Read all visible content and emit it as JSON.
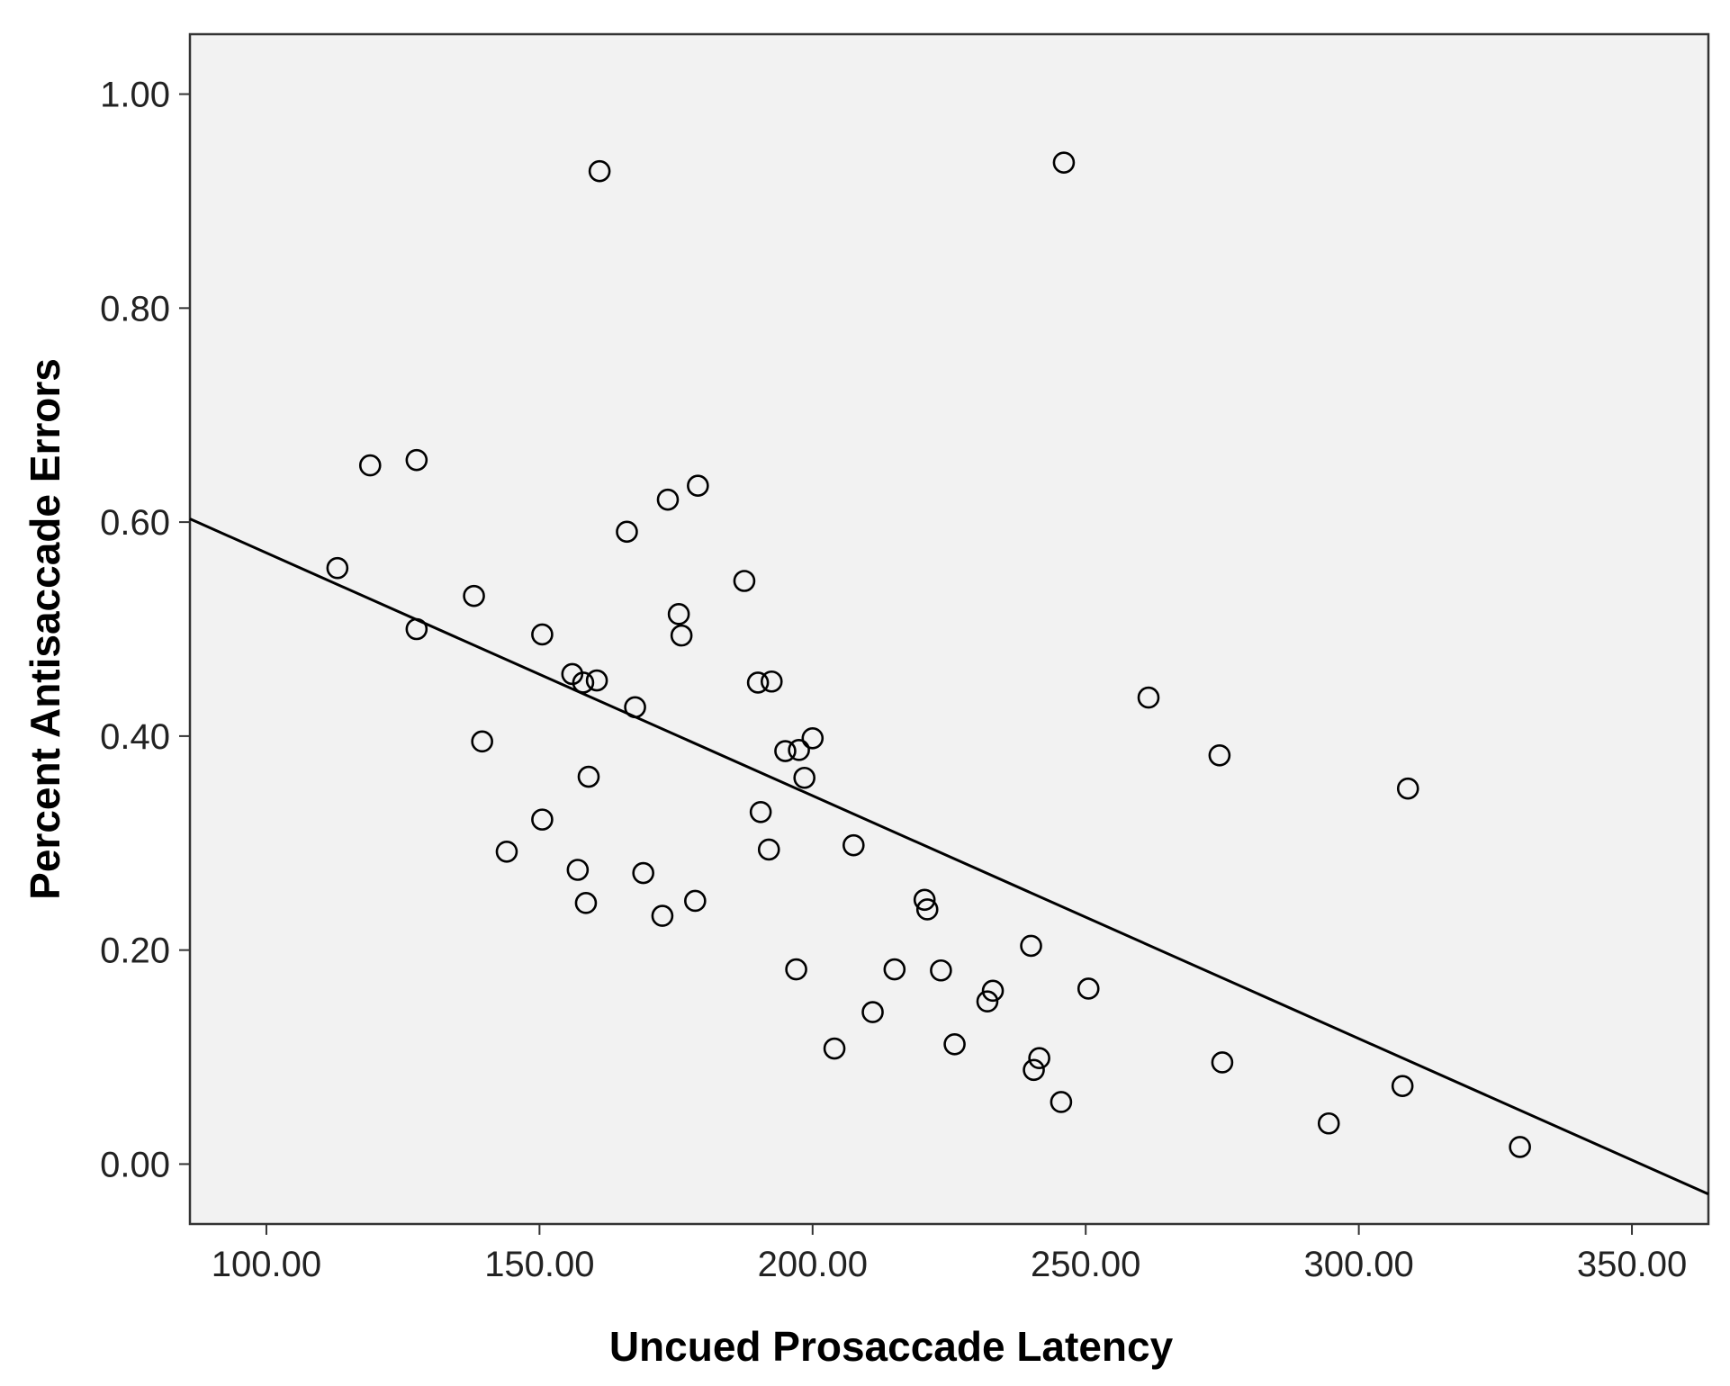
{
  "chart_data": {
    "type": "scatter",
    "xlabel": "Uncued Prosaccade Latency",
    "ylabel": "Percent Antisaccade Errors",
    "xlim": [
      86,
      364
    ],
    "ylim": [
      -0.056,
      1.056
    ],
    "xticks": [
      100,
      150,
      200,
      250,
      300,
      350
    ],
    "yticks": [
      0.0,
      0.2,
      0.4,
      0.6,
      0.8,
      1.0
    ],
    "xtick_labels": [
      "100.00",
      "150.00",
      "200.00",
      "250.00",
      "300.00",
      "350.00"
    ],
    "ytick_labels": [
      "0.00",
      "0.20",
      "0.40",
      "0.60",
      "0.80",
      "1.00"
    ],
    "grid": false,
    "legend": "none",
    "colors": {
      "plot_background": "#f2f2f2",
      "marker_edge": "#000000",
      "fit_line": "#000000",
      "frame": "#333333"
    },
    "points": [
      {
        "x": 113,
        "y": 0.557
      },
      {
        "x": 119,
        "y": 0.653
      },
      {
        "x": 127.5,
        "y": 0.658
      },
      {
        "x": 127.5,
        "y": 0.5
      },
      {
        "x": 138,
        "y": 0.531
      },
      {
        "x": 139.5,
        "y": 0.395
      },
      {
        "x": 144,
        "y": 0.292
      },
      {
        "x": 150.5,
        "y": 0.322
      },
      {
        "x": 150.5,
        "y": 0.495
      },
      {
        "x": 156,
        "y": 0.458
      },
      {
        "x": 157,
        "y": 0.275
      },
      {
        "x": 158,
        "y": 0.45
      },
      {
        "x": 158.5,
        "y": 0.244
      },
      {
        "x": 159,
        "y": 0.362
      },
      {
        "x": 160.5,
        "y": 0.452
      },
      {
        "x": 161,
        "y": 0.928
      },
      {
        "x": 166,
        "y": 0.591
      },
      {
        "x": 167.5,
        "y": 0.427
      },
      {
        "x": 169,
        "y": 0.272
      },
      {
        "x": 172.5,
        "y": 0.232
      },
      {
        "x": 173.5,
        "y": 0.621
      },
      {
        "x": 175.5,
        "y": 0.514
      },
      {
        "x": 176,
        "y": 0.494
      },
      {
        "x": 178.5,
        "y": 0.246
      },
      {
        "x": 179,
        "y": 0.634
      },
      {
        "x": 187.5,
        "y": 0.545
      },
      {
        "x": 190,
        "y": 0.45
      },
      {
        "x": 190.5,
        "y": 0.329
      },
      {
        "x": 192,
        "y": 0.294
      },
      {
        "x": 192.5,
        "y": 0.451
      },
      {
        "x": 195,
        "y": 0.386
      },
      {
        "x": 197,
        "y": 0.182
      },
      {
        "x": 197.5,
        "y": 0.387
      },
      {
        "x": 198.5,
        "y": 0.361
      },
      {
        "x": 200,
        "y": 0.398
      },
      {
        "x": 204,
        "y": 0.108
      },
      {
        "x": 207.5,
        "y": 0.298
      },
      {
        "x": 211,
        "y": 0.142
      },
      {
        "x": 215,
        "y": 0.182
      },
      {
        "x": 220.5,
        "y": 0.247
      },
      {
        "x": 221,
        "y": 0.238
      },
      {
        "x": 223.5,
        "y": 0.181
      },
      {
        "x": 226,
        "y": 0.112
      },
      {
        "x": 232,
        "y": 0.152
      },
      {
        "x": 233,
        "y": 0.162
      },
      {
        "x": 240,
        "y": 0.204
      },
      {
        "x": 240.5,
        "y": 0.088
      },
      {
        "x": 241.5,
        "y": 0.099
      },
      {
        "x": 245.5,
        "y": 0.058
      },
      {
        "x": 246,
        "y": 0.936
      },
      {
        "x": 250.5,
        "y": 0.164
      },
      {
        "x": 261.5,
        "y": 0.436
      },
      {
        "x": 274.5,
        "y": 0.382
      },
      {
        "x": 275,
        "y": 0.095
      },
      {
        "x": 294.5,
        "y": 0.038
      },
      {
        "x": 308,
        "y": 0.073
      },
      {
        "x": 309,
        "y": 0.351
      },
      {
        "x": 329.5,
        "y": 0.016
      }
    ],
    "fit_line": {
      "x": [
        86,
        364
      ],
      "y": [
        0.603,
        -0.028
      ]
    }
  }
}
